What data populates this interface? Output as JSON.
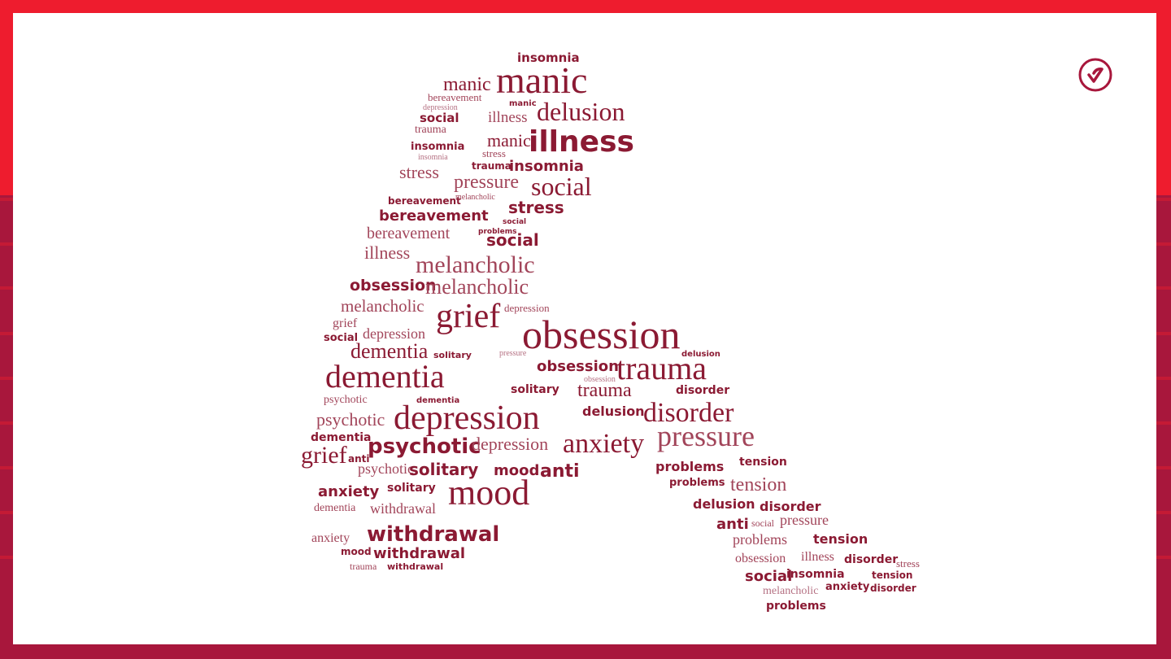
{
  "slide": {
    "logo_icon": "check-circle-icon",
    "frame_colors": {
      "top": "#ee1c2e",
      "bottom": "#a8173c",
      "word": "#8b1a33"
    }
  },
  "word_cloud": {
    "words": [
      "insomnia",
      "manic",
      "manic",
      "bereavement",
      "manic",
      "social",
      "illness",
      "delusion",
      "depression",
      "trauma",
      "insomnia",
      "manic",
      "illness",
      "stress",
      "insomnia",
      "trauma",
      "insomnia",
      "stress",
      "pressure",
      "social",
      "bereavement",
      "melancholic",
      "bereavement",
      "stress",
      "social",
      "bereavement",
      "problems",
      "social",
      "illness",
      "melancholic",
      "obsession",
      "melancholic",
      "melancholic",
      "grief",
      "depression",
      "grief",
      "depression",
      "obsession",
      "social",
      "dementia",
      "solitary",
      "obsession",
      "trauma",
      "dementia",
      "obsession",
      "solitary",
      "trauma",
      "disorder",
      "psychotic",
      "dementia",
      "psychotic",
      "depression",
      "delusion",
      "disorder",
      "dementia",
      "psychotic",
      "depression",
      "anxiety",
      "pressure",
      "grief",
      "anti",
      "psychotic",
      "solitary",
      "mood",
      "anti",
      "problems",
      "tension",
      "anxiety",
      "solitary",
      "mood",
      "problems",
      "tension",
      "dementia",
      "withdrawal",
      "delusion",
      "disorder",
      "anti",
      "social",
      "pressure",
      "anxiety",
      "withdrawal",
      "problems",
      "tension",
      "mood",
      "withdrawal",
      "obsession",
      "illness",
      "disorder",
      "stress",
      "trauma",
      "withdrawal",
      "social",
      "insomnia",
      "tension",
      "melancholic",
      "anxiety",
      "disorder",
      "problems",
      "pressure",
      "delusion"
    ]
  }
}
